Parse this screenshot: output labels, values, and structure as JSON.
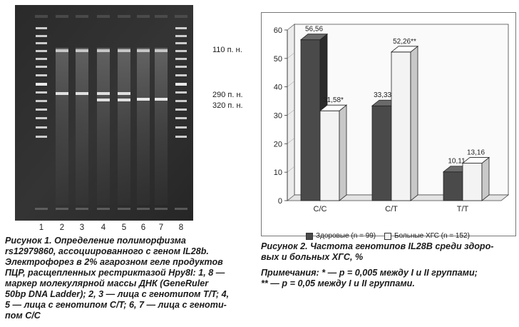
{
  "figure1": {
    "lane_numbers": [
      "1",
      "2",
      "3",
      "4",
      "5",
      "6",
      "7",
      "8"
    ],
    "band_labels": [
      "110 п. н.",
      "290 п. н.",
      "320 п. н."
    ],
    "caption_lines": [
      "Рисунок 1. Определение полиморфизма",
      "rs12979860, ассоциированного с геном IL28b.",
      "Электрофорез в 2% агарозном геле продуктов",
      "ПЦР, расщепленных рестриктазой Hpy8I: 1, 8 —",
      "маркер молекулярной массы ДНК (GeneRuler",
      "50bp DNA Ladder); 2, 3 — лица с генотипом T/T; 4,",
      "5 — лица с генотипом C/T; 6, 7 — лица с геноти-",
      "пом C/C"
    ]
  },
  "figure2": {
    "caption_lines": [
      "Рисунок 2. Частота генотипов IL28B среди здоро-",
      "вых и больных ХГС, %"
    ],
    "note_lines": [
      "Примечания: * — p = 0,005 между I и II группами;",
      "** — p = 0,05 между I и II группами."
    ]
  },
  "chart_data": {
    "type": "bar",
    "categories": [
      "C/C",
      "C/T",
      "T/T"
    ],
    "series": [
      {
        "name": "Здоровые (n = 99)",
        "values": [
          56.56,
          33.33,
          10.11
        ],
        "labels": [
          "56,56",
          "33,33**",
          "10,11"
        ],
        "color": "#4a4a4a"
      },
      {
        "name": "Больные ХГС (n = 152)",
        "values": [
          31.58,
          52.26,
          13.16
        ],
        "labels": [
          "31,58*",
          "52,26**",
          "13,16"
        ],
        "color": "#f3f3f3"
      }
    ],
    "y_ticks": [
      "0",
      "10",
      "20",
      "30",
      "40",
      "50",
      "60"
    ],
    "ylim": [
      0,
      60
    ],
    "grid": false,
    "legend_position": "bottom"
  }
}
